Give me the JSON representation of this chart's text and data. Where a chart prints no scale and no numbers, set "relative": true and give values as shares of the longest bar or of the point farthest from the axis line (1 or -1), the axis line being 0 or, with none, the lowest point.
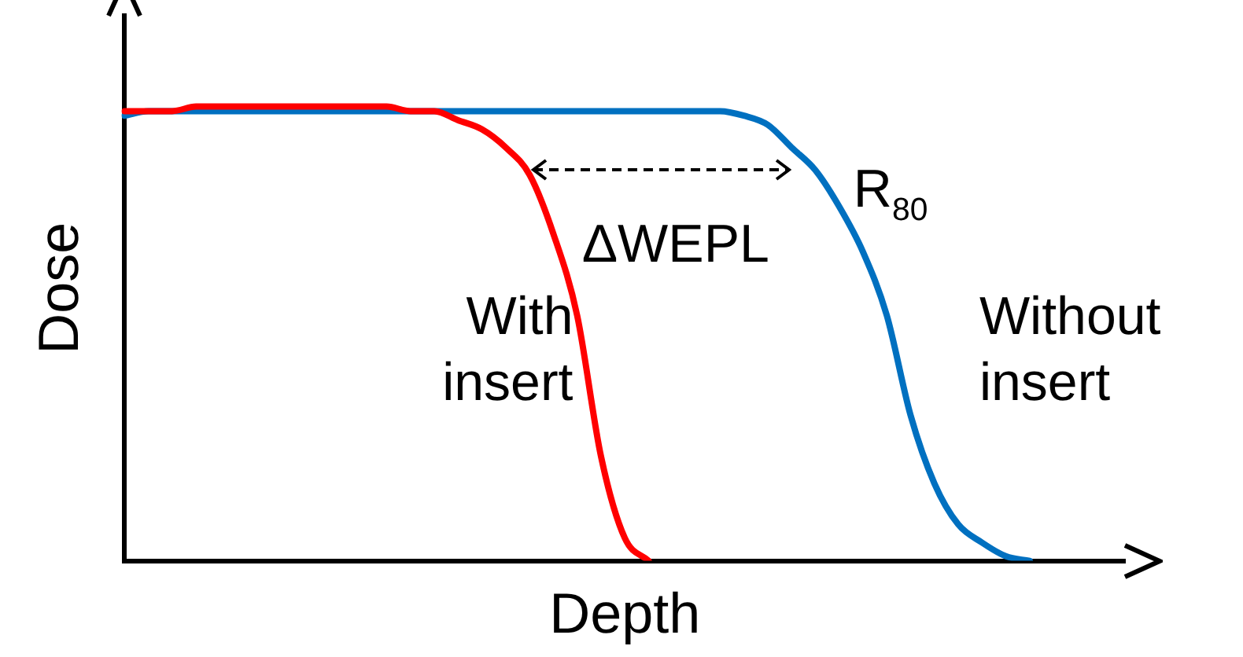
{
  "chart_data": {
    "type": "line",
    "relative": true,
    "xlabel": "Depth",
    "ylabel": "Dose",
    "categories": [
      null,
      null,
      null,
      null,
      null,
      null,
      null,
      null,
      null,
      null,
      null,
      null,
      null,
      null,
      null,
      null,
      null,
      null,
      null,
      null,
      null,
      null,
      null,
      null,
      null,
      null,
      null,
      null,
      null,
      null,
      null,
      null,
      null,
      null,
      null,
      null,
      null,
      null,
      null,
      null,
      null,
      null,
      null
    ],
    "series": [
      {
        "name": "With insert",
        "color": "#ff0000",
        "values": [
          0.99,
          0.99,
          0.99,
          1,
          1,
          1,
          1,
          1,
          1,
          1,
          1,
          1,
          0.99,
          0.99,
          0.97,
          0.95,
          0.91,
          0.85,
          0.72,
          0.54,
          0.23,
          0.05,
          0,
          null,
          null,
          null,
          null,
          null,
          null,
          null,
          null,
          null,
          null,
          null,
          null,
          null,
          null,
          null,
          null,
          null,
          null,
          null,
          null
        ]
      },
      {
        "name": "Without insert",
        "color": "#0070c0",
        "values": [
          0.98,
          0.99,
          0.99,
          0.99,
          0.99,
          0.99,
          0.99,
          0.99,
          0.99,
          0.99,
          0.99,
          0.99,
          0.99,
          0.99,
          0.99,
          0.99,
          0.99,
          0.99,
          0.99,
          0.99,
          0.99,
          0.99,
          0.99,
          0.99,
          0.99,
          0.99,
          0.98,
          0.96,
          0.91,
          0.86,
          0.78,
          0.68,
          0.54,
          0.32,
          0.17,
          0.08,
          0.04,
          0.01,
          0,
          null,
          null,
          null,
          null
        ]
      }
    ],
    "annotations": [
      "ΔWEPL",
      "R$_{80}$"
    ]
  }
}
